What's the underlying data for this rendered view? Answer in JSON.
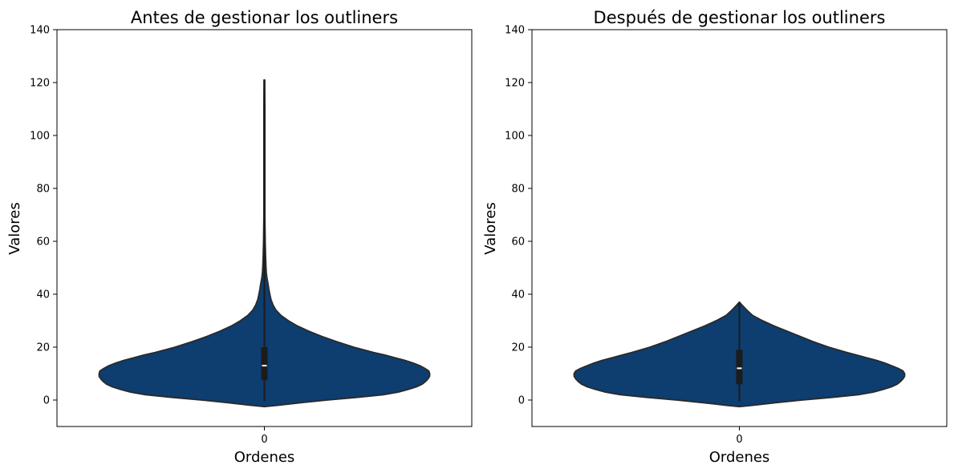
{
  "chart_data": [
    {
      "type": "violin",
      "title": "Antes de gestionar los outliners",
      "xlabel": "Ordenes",
      "ylabel": "Valores",
      "categories": [
        "0"
      ],
      "ylim": [
        -10,
        140
      ],
      "yticks": [
        "0",
        "20",
        "40",
        "60",
        "80",
        "100",
        "120",
        "140"
      ],
      "color": "#0e3d70",
      "edge_color": "#2a2a2a",
      "stats": {
        "min": -0.5,
        "q1": 7.5,
        "median": 13,
        "q3": 20,
        "whisker_high": 35,
        "max": 121
      },
      "density_profile": [
        [
          -2.5,
          0.0
        ],
        [
          -2,
          0.08
        ],
        [
          -1,
          0.22
        ],
        [
          0,
          0.38
        ],
        [
          1,
          0.56
        ],
        [
          2,
          0.72
        ],
        [
          3,
          0.81
        ],
        [
          4,
          0.87
        ],
        [
          5,
          0.92
        ],
        [
          6,
          0.955
        ],
        [
          7,
          0.975
        ],
        [
          8,
          0.99
        ],
        [
          9,
          1.0
        ],
        [
          10,
          1.0
        ],
        [
          11,
          0.995
        ],
        [
          12,
          0.97
        ],
        [
          13,
          0.94
        ],
        [
          14,
          0.9
        ],
        [
          15,
          0.85
        ],
        [
          16,
          0.79
        ],
        [
          17,
          0.73
        ],
        [
          18,
          0.66
        ],
        [
          20,
          0.54
        ],
        [
          22,
          0.44
        ],
        [
          24,
          0.35
        ],
        [
          26,
          0.27
        ],
        [
          28,
          0.2
        ],
        [
          30,
          0.145
        ],
        [
          32,
          0.1
        ],
        [
          34,
          0.07
        ],
        [
          36,
          0.052
        ],
        [
          38,
          0.04
        ],
        [
          40,
          0.033
        ],
        [
          42,
          0.027
        ],
        [
          44,
          0.022
        ],
        [
          46,
          0.016
        ],
        [
          48,
          0.012
        ],
        [
          50,
          0.01
        ],
        [
          55,
          0.007
        ],
        [
          60,
          0.005
        ],
        [
          65,
          0.004
        ],
        [
          70,
          0.003
        ],
        [
          80,
          0.003
        ],
        [
          90,
          0.003
        ],
        [
          100,
          0.003
        ],
        [
          110,
          0.003
        ],
        [
          121,
          0.002
        ]
      ]
    },
    {
      "type": "violin",
      "title": "Después de gestionar los outliners",
      "xlabel": "Ordenes",
      "ylabel": "Valores",
      "categories": [
        "0"
      ],
      "ylim": [
        -10,
        140
      ],
      "yticks": [
        "0",
        "20",
        "40",
        "60",
        "80",
        "100",
        "120",
        "140"
      ],
      "color": "#0e3d70",
      "edge_color": "#2a2a2a",
      "stats": {
        "min": -0.5,
        "q1": 6,
        "median": 12,
        "q3": 19,
        "whisker_high": 34,
        "max": 37
      },
      "density_profile": [
        [
          -2.5,
          0.0
        ],
        [
          -2,
          0.08
        ],
        [
          -1,
          0.22
        ],
        [
          0,
          0.38
        ],
        [
          1,
          0.56
        ],
        [
          2,
          0.72
        ],
        [
          3,
          0.81
        ],
        [
          4,
          0.87
        ],
        [
          5,
          0.92
        ],
        [
          6,
          0.955
        ],
        [
          7,
          0.975
        ],
        [
          8,
          0.99
        ],
        [
          9,
          1.0
        ],
        [
          10,
          1.0
        ],
        [
          11,
          0.99
        ],
        [
          12,
          0.96
        ],
        [
          13,
          0.92
        ],
        [
          14,
          0.88
        ],
        [
          15,
          0.83
        ],
        [
          16,
          0.77
        ],
        [
          17,
          0.71
        ],
        [
          18,
          0.65
        ],
        [
          20,
          0.54
        ],
        [
          22,
          0.45
        ],
        [
          24,
          0.37
        ],
        [
          26,
          0.29
        ],
        [
          28,
          0.21
        ],
        [
          30,
          0.14
        ],
        [
          32,
          0.08
        ],
        [
          34,
          0.045
        ],
        [
          35,
          0.03
        ],
        [
          36,
          0.015
        ],
        [
          37,
          0.0
        ]
      ]
    }
  ]
}
